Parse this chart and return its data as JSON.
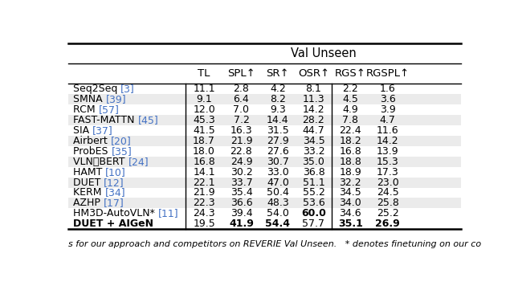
{
  "title": "Val Unseen",
  "columns": [
    "",
    "TL",
    "SPL↑",
    "SR↑",
    "OSR↑",
    "RGS↑",
    "RGSPL↑"
  ],
  "rows": [
    {
      "name": "Seq2Seq [3]",
      "bold_name": false,
      "ref_color": "#4472c4",
      "values": [
        "11.1",
        "2.8",
        "4.2",
        "8.1",
        "2.2",
        "1.6"
      ],
      "bold_values": [
        false,
        false,
        false,
        false,
        false,
        false
      ]
    },
    {
      "name": "SMNA [39]",
      "bold_name": false,
      "ref_color": "#4472c4",
      "values": [
        "9.1",
        "6.4",
        "8.2",
        "11.3",
        "4.5",
        "3.6"
      ],
      "bold_values": [
        false,
        false,
        false,
        false,
        false,
        false
      ]
    },
    {
      "name": "RCM [57]",
      "bold_name": false,
      "ref_color": "#4472c4",
      "values": [
        "12.0",
        "7.0",
        "9.3",
        "14.2",
        "4.9",
        "3.9"
      ],
      "bold_values": [
        false,
        false,
        false,
        false,
        false,
        false
      ]
    },
    {
      "name": "FAST-MATTN [45]",
      "bold_name": false,
      "ref_color": "#4472c4",
      "values": [
        "45.3",
        "7.2",
        "14.4",
        "28.2",
        "7.8",
        "4.7"
      ],
      "bold_values": [
        false,
        false,
        false,
        false,
        false,
        false
      ]
    },
    {
      "name": "SIA [37]",
      "bold_name": false,
      "ref_color": "#4472c4",
      "values": [
        "41.5",
        "16.3",
        "31.5",
        "44.7",
        "22.4",
        "11.6"
      ],
      "bold_values": [
        false,
        false,
        false,
        false,
        false,
        false
      ]
    },
    {
      "name": "Airbert [20]",
      "bold_name": false,
      "ref_color": "#4472c4",
      "values": [
        "18.7",
        "21.9",
        "27.9",
        "34.5",
        "18.2",
        "14.2"
      ],
      "bold_values": [
        false,
        false,
        false,
        false,
        false,
        false
      ]
    },
    {
      "name": "ProbES [35]",
      "bold_name": false,
      "ref_color": "#4472c4",
      "values": [
        "18.0",
        "22.8",
        "27.6",
        "33.2",
        "16.8",
        "13.9"
      ],
      "bold_values": [
        false,
        false,
        false,
        false,
        false,
        false
      ]
    },
    {
      "name": "VLNⓄBERT [24]",
      "bold_name": false,
      "ref_color": "#4472c4",
      "values": [
        "16.8",
        "24.9",
        "30.7",
        "35.0",
        "18.8",
        "15.3"
      ],
      "bold_values": [
        false,
        false,
        false,
        false,
        false,
        false
      ]
    },
    {
      "name": "HAMT [10]",
      "bold_name": false,
      "ref_color": "#4472c4",
      "values": [
        "14.1",
        "30.2",
        "33.0",
        "36.8",
        "18.9",
        "17.3"
      ],
      "bold_values": [
        false,
        false,
        false,
        false,
        false,
        false
      ]
    },
    {
      "name": "DUET [12]",
      "bold_name": false,
      "ref_color": "#4472c4",
      "values": [
        "22.1",
        "33.7",
        "47.0",
        "51.1",
        "32.2",
        "23.0"
      ],
      "bold_values": [
        false,
        false,
        false,
        false,
        false,
        false
      ]
    },
    {
      "name": "KERM [34]",
      "bold_name": false,
      "ref_color": "#4472c4",
      "values": [
        "21.9",
        "35.4",
        "50.4",
        "55.2",
        "34.5",
        "24.5"
      ],
      "bold_values": [
        false,
        false,
        false,
        false,
        false,
        false
      ]
    },
    {
      "name": "AZHP [17]",
      "bold_name": false,
      "ref_color": "#4472c4",
      "values": [
        "22.3",
        "36.6",
        "48.3",
        "53.6",
        "34.0",
        "25.8"
      ],
      "bold_values": [
        false,
        false,
        false,
        false,
        false,
        false
      ]
    },
    {
      "name": "HM3D-AutoVLN* [11]",
      "bold_name": false,
      "ref_color": "#4472c4",
      "values": [
        "24.3",
        "39.4",
        "54.0",
        "60.0",
        "34.6",
        "25.2"
      ],
      "bold_values": [
        false,
        false,
        false,
        true,
        false,
        false
      ]
    },
    {
      "name": "DUET + AIGeN",
      "bold_name": true,
      "ref_color": null,
      "values": [
        "19.5",
        "41.9",
        "54.4",
        "57.7",
        "35.1",
        "26.9"
      ],
      "bold_values": [
        false,
        true,
        true,
        false,
        true,
        true
      ]
    }
  ],
  "col_separator_after": [
    0,
    4
  ],
  "shaded_rows": [
    1,
    3,
    5,
    7,
    9,
    11
  ],
  "shade_color": "#ebebeb",
  "background_color": "#ffffff",
  "footer": "s for our approach and competitors on REVERIE Val Unseen.   * denotes finetuning on our co",
  "title_fontsize": 10.5,
  "header_fontsize": 9.5,
  "data_fontsize": 9.0,
  "footer_fontsize": 8.0
}
